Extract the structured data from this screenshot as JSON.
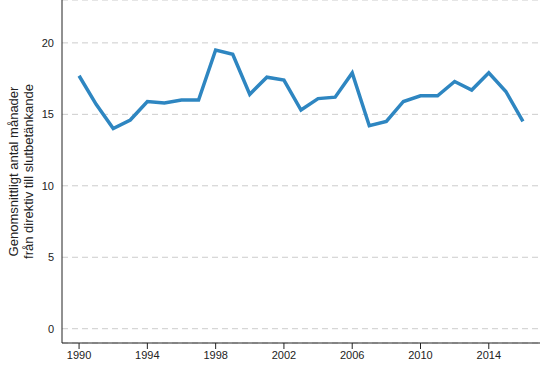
{
  "chart_data": {
    "type": "line",
    "y_label": [
      "Genomsnittligt antal månader",
      "från direktiv till slutbetänkande"
    ],
    "x": [
      1990,
      1991,
      1992,
      1993,
      1994,
      1995,
      1996,
      1997,
      1998,
      1999,
      2000,
      2001,
      2002,
      2003,
      2004,
      2005,
      2006,
      2007,
      2008,
      2009,
      2010,
      2011,
      2012,
      2013,
      2014,
      2015,
      2016
    ],
    "values": [
      17.7,
      15.7,
      14.0,
      14.6,
      15.9,
      15.8,
      16.0,
      16.0,
      19.5,
      19.2,
      16.4,
      17.6,
      17.4,
      15.3,
      16.1,
      16.2,
      17.9,
      14.2,
      14.5,
      15.9,
      16.3,
      16.3,
      17.3,
      16.7,
      17.9,
      16.6,
      14.5
    ],
    "color": "#2e86c1",
    "xlim": [
      1989,
      2017
    ],
    "xticks": [
      1990,
      1994,
      1998,
      2002,
      2006,
      2010,
      2014
    ],
    "ylim": [
      -1,
      23
    ],
    "yticks": [
      0,
      5,
      10,
      15,
      20
    ],
    "grid": true
  }
}
